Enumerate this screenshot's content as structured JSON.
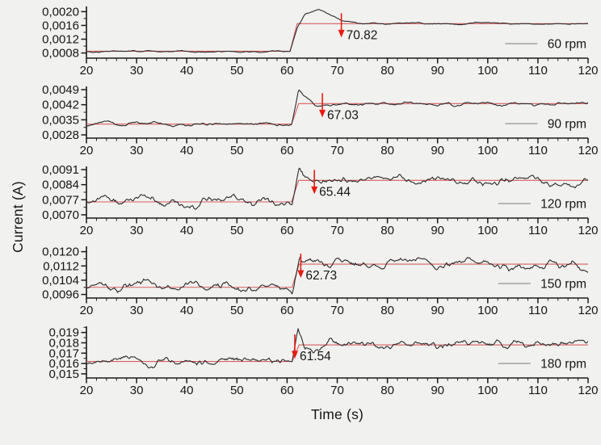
{
  "figure": {
    "ylabel": "Current (A)",
    "xlabel": "Time (s)",
    "background": "#f1f1ef",
    "colors": {
      "axis": "#1a1a1a",
      "data_line": "#2b2b2b",
      "fit_line": "#d65f5f",
      "arrow": "#e61c12",
      "annotation_text": "#111111",
      "legend_line": "#9b9b9b",
      "tick_text": "#161616"
    }
  },
  "chart_data": [
    {
      "type": "line",
      "legend": "60 rpm",
      "seed": 101,
      "x": {
        "min": 20,
        "max": 120,
        "major_ticks": [
          20,
          30,
          40,
          50,
          60,
          70,
          80,
          90,
          100,
          110,
          120
        ],
        "minor_step": 2
      },
      "ylim": [
        0.00065,
        0.00215
      ],
      "y_ticks": [
        0.0008,
        0.0012,
        0.0016,
        0.002
      ],
      "y_tick_labels": [
        "0,0008",
        "0,0012",
        "0,0016",
        "0,0020"
      ],
      "baseline": 0.00085,
      "steady_state": 0.00165,
      "step_time": 60.6,
      "profile": [
        [
          20,
          0.00085
        ],
        [
          60.6,
          0.00085
        ],
        [
          62,
          0.0015
        ],
        [
          63.5,
          0.00192
        ],
        [
          66.3,
          0.00207
        ],
        [
          70.8,
          0.00173
        ],
        [
          74,
          0.00166
        ],
        [
          120,
          0.00165
        ]
      ],
      "noise_amp": 2.8e-05,
      "annotation": {
        "label": "70.82",
        "time": 70.82
      }
    },
    {
      "type": "line",
      "legend": "90 rpm",
      "seed": 202,
      "x": {
        "min": 20,
        "max": 120,
        "major_ticks": [
          20,
          30,
          40,
          50,
          60,
          70,
          80,
          90,
          100,
          110,
          120
        ],
        "minor_step": 2
      },
      "ylim": [
        0.00265,
        0.00505
      ],
      "y_ticks": [
        0.0028,
        0.0035,
        0.0042,
        0.0049
      ],
      "y_tick_labels": [
        "0,0028",
        "0,0035",
        "0,0042",
        "0,0049"
      ],
      "baseline": 0.0033,
      "steady_state": 0.00425,
      "step_time": 60.9,
      "profile": [
        [
          20,
          0.0033
        ],
        [
          60.9,
          0.0033
        ],
        [
          62.3,
          0.00497
        ],
        [
          63.3,
          0.00468
        ],
        [
          65.5,
          0.00422
        ],
        [
          68.5,
          0.00412
        ],
        [
          71,
          0.00424
        ],
        [
          120,
          0.00425
        ]
      ],
      "noise_amp": 0.0001,
      "annotation": {
        "label": "67.03",
        "time": 67.03
      }
    },
    {
      "type": "line",
      "legend": "120 rpm",
      "seed": 303,
      "x": {
        "min": 20,
        "max": 120,
        "major_ticks": [
          20,
          30,
          40,
          50,
          60,
          70,
          80,
          90,
          100,
          110,
          120
        ],
        "minor_step": 2
      },
      "ylim": [
        0.00685,
        0.00925
      ],
      "y_ticks": [
        0.007,
        0.0077,
        0.0084,
        0.0091
      ],
      "y_tick_labels": [
        "0,0070",
        "0,0077",
        "0,0084",
        "0,0091"
      ],
      "baseline": 0.0076,
      "steady_state": 0.0086,
      "step_time": 60.9,
      "profile": [
        [
          20,
          0.0076
        ],
        [
          60.4,
          0.0076
        ],
        [
          61,
          0.00745
        ],
        [
          62.4,
          0.00912
        ],
        [
          63.8,
          0.00868
        ],
        [
          66,
          0.00853
        ],
        [
          70,
          0.0086
        ],
        [
          120,
          0.0086
        ]
      ],
      "noise_amp": 0.00024,
      "annotation": {
        "label": "65.44",
        "time": 65.44
      }
    },
    {
      "type": "line",
      "legend": "150 rpm",
      "seed": 404,
      "x": {
        "min": 20,
        "max": 120,
        "major_ticks": [
          20,
          30,
          40,
          50,
          60,
          70,
          80,
          90,
          100,
          110,
          120
        ],
        "minor_step": 2
      },
      "ylim": [
        0.0094,
        0.0123
      ],
      "y_ticks": [
        0.0096,
        0.0104,
        0.0112,
        0.012
      ],
      "y_tick_labels": [
        "0,0096",
        "0,0104",
        "0,0112",
        "0,0120"
      ],
      "baseline": 0.01,
      "steady_state": 0.0113,
      "step_time": 61.0,
      "profile": [
        [
          20,
          0.01
        ],
        [
          60.5,
          0.01
        ],
        [
          61,
          0.00985
        ],
        [
          62.6,
          0.01185
        ],
        [
          64.2,
          0.01145
        ],
        [
          66.5,
          0.0113
        ],
        [
          120,
          0.0113
        ]
      ],
      "noise_amp": 0.0003,
      "annotation": {
        "label": "62.73",
        "time": 62.73
      }
    },
    {
      "type": "line",
      "legend": "180 rpm",
      "seed": 505,
      "x": {
        "min": 20,
        "max": 120,
        "major_ticks": [
          20,
          30,
          40,
          50,
          60,
          70,
          80,
          90,
          100,
          110,
          120
        ],
        "minor_step": 2
      },
      "ylim": [
        0.0146,
        0.0196
      ],
      "y_ticks": [
        0.015,
        0.016,
        0.017,
        0.018,
        0.019
      ],
      "y_tick_labels": [
        "0,015",
        "0,016",
        "0,017",
        "0,018",
        "0,019"
      ],
      "baseline": 0.0162,
      "steady_state": 0.0178,
      "step_time": 61.0,
      "profile": [
        [
          20,
          0.0162
        ],
        [
          60.5,
          0.0162
        ],
        [
          61,
          0.0159
        ],
        [
          62.2,
          0.0191
        ],
        [
          63.6,
          0.0172
        ],
        [
          65.5,
          0.0177
        ],
        [
          120,
          0.0178
        ]
      ],
      "noise_amp": 0.0005,
      "annotation": {
        "label": "61.54",
        "time": 61.54
      }
    }
  ]
}
